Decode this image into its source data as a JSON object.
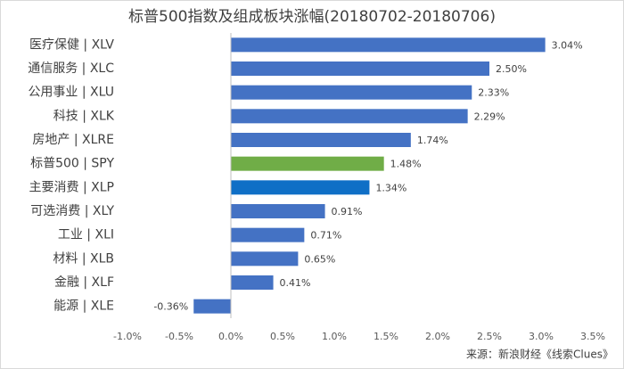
{
  "chart_data": {
    "type": "bar",
    "orientation": "horizontal",
    "title": "标普500指数及组成板块涨幅(20180702-20180706)",
    "categories": [
      "医疗保健 | XLV",
      "通信服务 | XLC",
      "公用事业 | XLU",
      "科技 | XLK",
      "房地产 | XLRE",
      "标普500 | SPY",
      "主要消费 | XLP",
      "可选消费 | XLY",
      "工业 | XLI",
      "材料 | XLB",
      "金融 | XLF",
      "能源 | XLE"
    ],
    "values": [
      3.04,
      2.5,
      2.33,
      2.29,
      1.74,
      1.48,
      1.34,
      0.91,
      0.71,
      0.65,
      0.41,
      -0.36
    ],
    "value_labels": [
      "3.04%",
      "2.50%",
      "2.33%",
      "2.29%",
      "1.74%",
      "1.48%",
      "1.34%",
      "0.91%",
      "0.71%",
      "0.65%",
      "0.41%",
      "-0.36%"
    ],
    "colors": [
      "#4472c4",
      "#4472c4",
      "#4472c4",
      "#4472c4",
      "#4472c4",
      "#70ad47",
      "#0f6fc6",
      "#4472c4",
      "#4472c4",
      "#4472c4",
      "#4472c4",
      "#4472c4"
    ],
    "xlim": [
      -1,
      3.5
    ],
    "xticks": [
      {
        "value": -1,
        "label": "-1.0%"
      },
      {
        "value": -0.5,
        "label": "-0.5%"
      },
      {
        "value": 0,
        "label": "0.0%"
      },
      {
        "value": 0.5,
        "label": "0.5%"
      },
      {
        "value": 1,
        "label": "1.0%"
      },
      {
        "value": 1.5,
        "label": "1.5%"
      },
      {
        "value": 2,
        "label": "2.0%"
      },
      {
        "value": 2.5,
        "label": "2.5%"
      },
      {
        "value": 3,
        "label": "3.0%"
      },
      {
        "value": 3.5,
        "label": "3.5%"
      }
    ],
    "grid": false,
    "source": "来源：新浪财经《线索Clues》"
  }
}
